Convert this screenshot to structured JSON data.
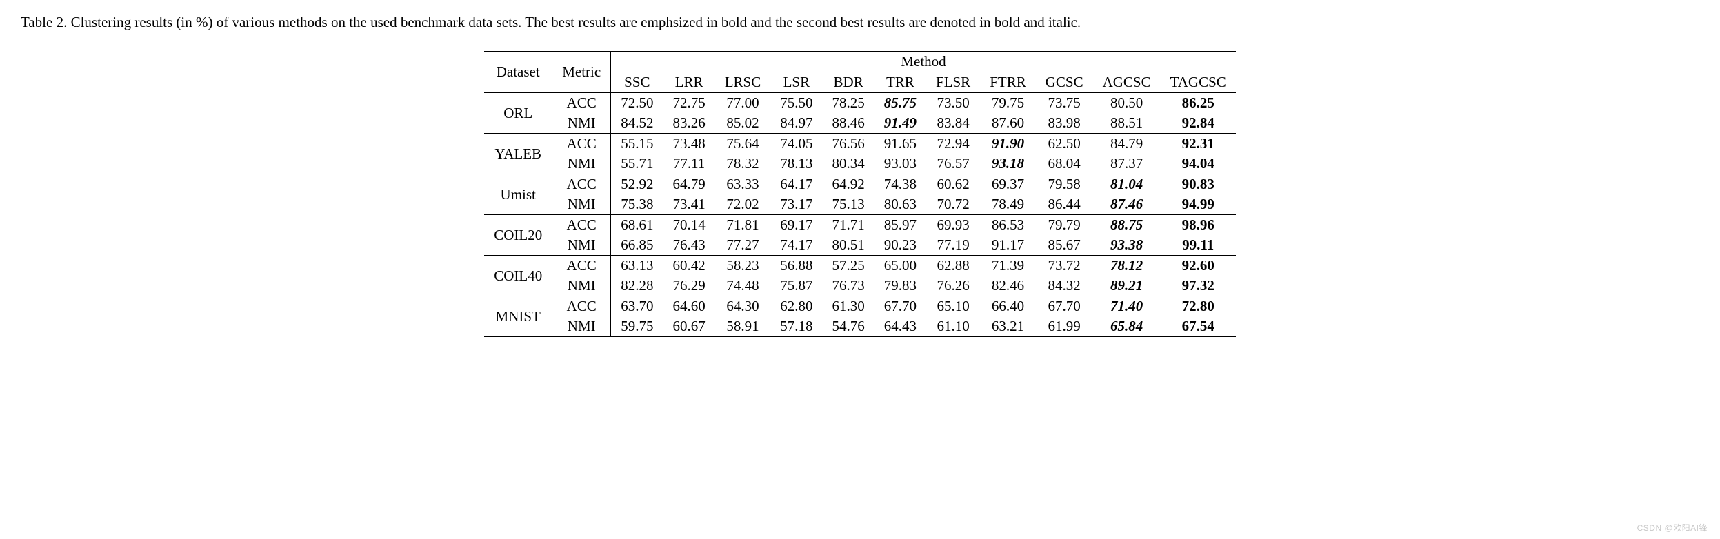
{
  "caption": {
    "label": "Table 2.",
    "text": " Clustering results (in %) of various methods on the used benchmark data sets. The best results are emphsized in bold and the second best results are denoted in bold and italic."
  },
  "header": {
    "dataset": "Dataset",
    "metric": "Metric",
    "method": "Method"
  },
  "methods": [
    "SSC",
    "LRR",
    "LRSC",
    "LSR",
    "BDR",
    "TRR",
    "FLSR",
    "FTRR",
    "GCSC",
    "AGCSC",
    "TAGCSC"
  ],
  "datasets": [
    {
      "name": "ORL",
      "rows": [
        {
          "metric": "ACC",
          "vals": [
            {
              "v": "72.50",
              "s": ""
            },
            {
              "v": "72.75",
              "s": ""
            },
            {
              "v": "77.00",
              "s": ""
            },
            {
              "v": "75.50",
              "s": ""
            },
            {
              "v": "78.25",
              "s": ""
            },
            {
              "v": "85.75",
              "s": "second"
            },
            {
              "v": "73.50",
              "s": ""
            },
            {
              "v": "79.75",
              "s": ""
            },
            {
              "v": "73.75",
              "s": ""
            },
            {
              "v": "80.50",
              "s": ""
            },
            {
              "v": "86.25",
              "s": "bold"
            }
          ]
        },
        {
          "metric": "NMI",
          "vals": [
            {
              "v": "84.52",
              "s": ""
            },
            {
              "v": "83.26",
              "s": ""
            },
            {
              "v": "85.02",
              "s": ""
            },
            {
              "v": "84.97",
              "s": ""
            },
            {
              "v": "88.46",
              "s": ""
            },
            {
              "v": "91.49",
              "s": "second"
            },
            {
              "v": "83.84",
              "s": ""
            },
            {
              "v": "87.60",
              "s": ""
            },
            {
              "v": "83.98",
              "s": ""
            },
            {
              "v": "88.51",
              "s": ""
            },
            {
              "v": "92.84",
              "s": "bold"
            }
          ]
        }
      ]
    },
    {
      "name": "YALEB",
      "rows": [
        {
          "metric": "ACC",
          "vals": [
            {
              "v": "55.15",
              "s": ""
            },
            {
              "v": "73.48",
              "s": ""
            },
            {
              "v": "75.64",
              "s": ""
            },
            {
              "v": "74.05",
              "s": ""
            },
            {
              "v": "76.56",
              "s": ""
            },
            {
              "v": "91.65",
              "s": ""
            },
            {
              "v": "72.94",
              "s": ""
            },
            {
              "v": "91.90",
              "s": "second"
            },
            {
              "v": "62.50",
              "s": ""
            },
            {
              "v": "84.79",
              "s": ""
            },
            {
              "v": "92.31",
              "s": "bold"
            }
          ]
        },
        {
          "metric": "NMI",
          "vals": [
            {
              "v": "55.71",
              "s": ""
            },
            {
              "v": "77.11",
              "s": ""
            },
            {
              "v": "78.32",
              "s": ""
            },
            {
              "v": "78.13",
              "s": ""
            },
            {
              "v": "80.34",
              "s": ""
            },
            {
              "v": "93.03",
              "s": ""
            },
            {
              "v": "76.57",
              "s": ""
            },
            {
              "v": "93.18",
              "s": "second"
            },
            {
              "v": "68.04",
              "s": ""
            },
            {
              "v": "87.37",
              "s": ""
            },
            {
              "v": "94.04",
              "s": "bold"
            }
          ]
        }
      ]
    },
    {
      "name": "Umist",
      "rows": [
        {
          "metric": "ACC",
          "vals": [
            {
              "v": "52.92",
              "s": ""
            },
            {
              "v": "64.79",
              "s": ""
            },
            {
              "v": "63.33",
              "s": ""
            },
            {
              "v": "64.17",
              "s": ""
            },
            {
              "v": "64.92",
              "s": ""
            },
            {
              "v": "74.38",
              "s": ""
            },
            {
              "v": "60.62",
              "s": ""
            },
            {
              "v": "69.37",
              "s": ""
            },
            {
              "v": "79.58",
              "s": ""
            },
            {
              "v": "81.04",
              "s": "second"
            },
            {
              "v": "90.83",
              "s": "bold"
            }
          ]
        },
        {
          "metric": "NMI",
          "vals": [
            {
              "v": "75.38",
              "s": ""
            },
            {
              "v": "73.41",
              "s": ""
            },
            {
              "v": "72.02",
              "s": ""
            },
            {
              "v": "73.17",
              "s": ""
            },
            {
              "v": "75.13",
              "s": ""
            },
            {
              "v": "80.63",
              "s": ""
            },
            {
              "v": "70.72",
              "s": ""
            },
            {
              "v": "78.49",
              "s": ""
            },
            {
              "v": "86.44",
              "s": ""
            },
            {
              "v": "87.46",
              "s": "second"
            },
            {
              "v": "94.99",
              "s": "bold"
            }
          ]
        }
      ]
    },
    {
      "name": "COIL20",
      "rows": [
        {
          "metric": "ACC",
          "vals": [
            {
              "v": "68.61",
              "s": ""
            },
            {
              "v": "70.14",
              "s": ""
            },
            {
              "v": "71.81",
              "s": ""
            },
            {
              "v": "69.17",
              "s": ""
            },
            {
              "v": "71.71",
              "s": ""
            },
            {
              "v": "85.97",
              "s": ""
            },
            {
              "v": "69.93",
              "s": ""
            },
            {
              "v": "86.53",
              "s": ""
            },
            {
              "v": "79.79",
              "s": ""
            },
            {
              "v": "88.75",
              "s": "second"
            },
            {
              "v": "98.96",
              "s": "bold"
            }
          ]
        },
        {
          "metric": "NMI",
          "vals": [
            {
              "v": "66.85",
              "s": ""
            },
            {
              "v": "76.43",
              "s": ""
            },
            {
              "v": "77.27",
              "s": ""
            },
            {
              "v": "74.17",
              "s": ""
            },
            {
              "v": "80.51",
              "s": ""
            },
            {
              "v": "90.23",
              "s": ""
            },
            {
              "v": "77.19",
              "s": ""
            },
            {
              "v": "91.17",
              "s": ""
            },
            {
              "v": "85.67",
              "s": ""
            },
            {
              "v": "93.38",
              "s": "second"
            },
            {
              "v": "99.11",
              "s": "bold"
            }
          ]
        }
      ]
    },
    {
      "name": "COIL40",
      "rows": [
        {
          "metric": "ACC",
          "vals": [
            {
              "v": "63.13",
              "s": ""
            },
            {
              "v": "60.42",
              "s": ""
            },
            {
              "v": "58.23",
              "s": ""
            },
            {
              "v": "56.88",
              "s": ""
            },
            {
              "v": "57.25",
              "s": ""
            },
            {
              "v": "65.00",
              "s": ""
            },
            {
              "v": "62.88",
              "s": ""
            },
            {
              "v": "71.39",
              "s": ""
            },
            {
              "v": "73.72",
              "s": ""
            },
            {
              "v": "78.12",
              "s": "second"
            },
            {
              "v": "92.60",
              "s": "bold"
            }
          ]
        },
        {
          "metric": "NMI",
          "vals": [
            {
              "v": "82.28",
              "s": ""
            },
            {
              "v": "76.29",
              "s": ""
            },
            {
              "v": "74.48",
              "s": ""
            },
            {
              "v": "75.87",
              "s": ""
            },
            {
              "v": "76.73",
              "s": ""
            },
            {
              "v": "79.83",
              "s": ""
            },
            {
              "v": "76.26",
              "s": ""
            },
            {
              "v": "82.46",
              "s": ""
            },
            {
              "v": "84.32",
              "s": ""
            },
            {
              "v": "89.21",
              "s": "second"
            },
            {
              "v": "97.32",
              "s": "bold"
            }
          ]
        }
      ]
    },
    {
      "name": "MNIST",
      "rows": [
        {
          "metric": "ACC",
          "vals": [
            {
              "v": "63.70",
              "s": ""
            },
            {
              "v": "64.60",
              "s": ""
            },
            {
              "v": "64.30",
              "s": ""
            },
            {
              "v": "62.80",
              "s": ""
            },
            {
              "v": "61.30",
              "s": ""
            },
            {
              "v": "67.70",
              "s": ""
            },
            {
              "v": "65.10",
              "s": ""
            },
            {
              "v": "66.40",
              "s": ""
            },
            {
              "v": "67.70",
              "s": ""
            },
            {
              "v": "71.40",
              "s": "second"
            },
            {
              "v": "72.80",
              "s": "bold"
            }
          ]
        },
        {
          "metric": "NMI",
          "vals": [
            {
              "v": "59.75",
              "s": ""
            },
            {
              "v": "60.67",
              "s": ""
            },
            {
              "v": "58.91",
              "s": ""
            },
            {
              "v": "57.18",
              "s": ""
            },
            {
              "v": "54.76",
              "s": ""
            },
            {
              "v": "64.43",
              "s": ""
            },
            {
              "v": "61.10",
              "s": ""
            },
            {
              "v": "63.21",
              "s": ""
            },
            {
              "v": "61.99",
              "s": ""
            },
            {
              "v": "65.84",
              "s": "second"
            },
            {
              "v": "67.54",
              "s": "bold"
            }
          ]
        }
      ]
    }
  ],
  "watermark": "CSDN @欧阳AI锋"
}
